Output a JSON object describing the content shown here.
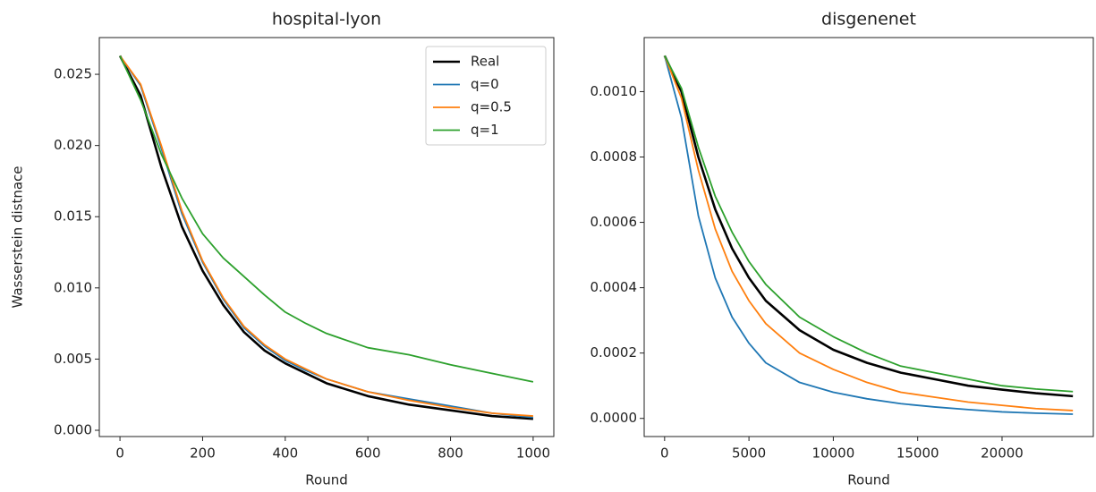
{
  "chart_data": [
    {
      "type": "line",
      "title": "hospital-lyon",
      "x_label": "Round",
      "y_label": "Wasserstein distnace",
      "x": [
        0,
        50,
        100,
        150,
        200,
        250,
        300,
        350,
        400,
        450,
        500,
        600,
        700,
        800,
        900,
        1000
      ],
      "series": [
        {
          "name": "Real",
          "color": "#000000",
          "linewidth": 2.6,
          "values": [
            0.0263,
            0.0235,
            0.0185,
            0.0143,
            0.0112,
            0.0088,
            0.0069,
            0.0056,
            0.0047,
            0.004,
            0.0033,
            0.0024,
            0.0018,
            0.0014,
            0.001,
            0.0008
          ]
        },
        {
          "name": "q=0",
          "color": "#1f77b4",
          "linewidth": 1.8,
          "values": [
            0.0263,
            0.0242,
            0.0198,
            0.0152,
            0.0118,
            0.0092,
            0.0072,
            0.0059,
            0.0049,
            0.0042,
            0.0036,
            0.0027,
            0.0022,
            0.0017,
            0.0012,
            0.0009
          ]
        },
        {
          "name": "q=0.5",
          "color": "#ff7f0e",
          "linewidth": 1.8,
          "values": [
            0.0263,
            0.0243,
            0.02,
            0.0154,
            0.0119,
            0.0093,
            0.0073,
            0.006,
            0.005,
            0.0043,
            0.0036,
            0.0027,
            0.0021,
            0.0016,
            0.0012,
            0.001
          ]
        },
        {
          "name": "q=1",
          "color": "#2ca02c",
          "linewidth": 1.8,
          "values": [
            0.0263,
            0.0232,
            0.0194,
            0.0163,
            0.0138,
            0.0121,
            0.0108,
            0.0095,
            0.0083,
            0.0075,
            0.0068,
            0.0058,
            0.0053,
            0.0046,
            0.004,
            0.0034
          ]
        }
      ],
      "xlim": [
        -50,
        1050
      ],
      "ylim": [
        -0.00044,
        0.02758
      ],
      "xticks": [
        0,
        200,
        400,
        600,
        800,
        1000
      ],
      "yticks": [
        {
          "value": 0,
          "label": "0.000"
        },
        0.005,
        {
          "value": 0.01,
          "label": "0.010"
        },
        0.015,
        {
          "value": 0.02,
          "label": "0.020"
        },
        0.025
      ],
      "legend": "upper right"
    },
    {
      "type": "line",
      "title": "disgenenet",
      "x_label": "Round",
      "x": [
        0,
        1000,
        2000,
        3000,
        4000,
        5000,
        6000,
        8000,
        10000,
        12000,
        14000,
        16000,
        18000,
        20000,
        22000,
        24200
      ],
      "series": [
        {
          "name": "Real",
          "color": "#000000",
          "linewidth": 2.6,
          "values": [
            0.00111,
            0.001,
            0.0008,
            0.00064,
            0.00052,
            0.00043,
            0.00036,
            0.00027,
            0.00021,
            0.00017,
            0.00014,
            0.00012,
            0.0001,
            8.8e-05,
            7.7e-05,
            6.8e-05
          ]
        },
        {
          "name": "q=0",
          "color": "#1f77b4",
          "linewidth": 1.8,
          "values": [
            0.00111,
            0.00092,
            0.00062,
            0.00043,
            0.00031,
            0.00023,
            0.00017,
            0.00011,
            8e-05,
            6e-05,
            4.5e-05,
            3.5e-05,
            2.7e-05,
            2e-05,
            1.6e-05,
            1.3e-05
          ]
        },
        {
          "name": "q=0.5",
          "color": "#ff7f0e",
          "linewidth": 1.8,
          "values": [
            0.00111,
            0.00098,
            0.00076,
            0.00058,
            0.00045,
            0.00036,
            0.00029,
            0.0002,
            0.00015,
            0.00011,
            8e-05,
            6.5e-05,
            5e-05,
            4e-05,
            3e-05,
            2.4e-05
          ]
        },
        {
          "name": "q=1",
          "color": "#2ca02c",
          "linewidth": 1.8,
          "values": [
            0.00111,
            0.00101,
            0.00083,
            0.00068,
            0.00057,
            0.00048,
            0.00041,
            0.00031,
            0.00025,
            0.0002,
            0.00016,
            0.00014,
            0.00012,
            0.0001,
            9e-05,
            8.2e-05
          ]
        }
      ],
      "xlim": [
        -1210,
        25410
      ],
      "ylim": [
        -5.55e-05,
        0.0011655
      ],
      "xticks": [
        0,
        5000,
        10000,
        15000,
        20000
      ],
      "yticks": [
        {
          "value": 0,
          "label": "0.0000"
        },
        {
          "value": 0.0002,
          "label": "0.0002"
        },
        {
          "value": 0.0004,
          "label": "0.0004"
        },
        {
          "value": 0.0006,
          "label": "0.0006"
        },
        {
          "value": 0.0008,
          "label": "0.0008"
        },
        {
          "value": 0.001,
          "label": "0.0010"
        }
      ]
    }
  ]
}
